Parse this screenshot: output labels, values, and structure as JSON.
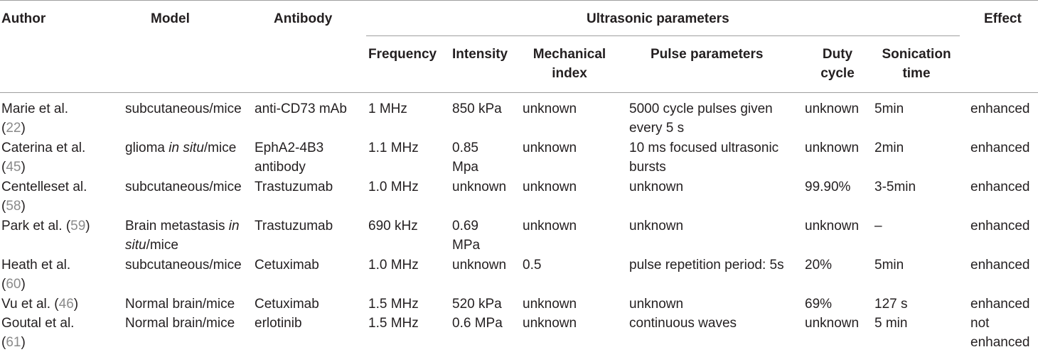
{
  "header": {
    "author": "Author",
    "model": "Model",
    "antibody": "Antibody",
    "ultrasonic": "Ultrasonic parameters",
    "effect": "Effect",
    "frequency": "Frequency",
    "intensity": "Intensity",
    "mechanical_1": "Mechanical",
    "mechanical_2": "index",
    "pulse": "Pulse parameters",
    "duty_1": "Duty",
    "duty_2": "cycle",
    "sonication_1": "Sonication",
    "sonication_2": "time"
  },
  "rows": [
    {
      "author_1": "Marie et al.",
      "author_2": "",
      "cite": "22",
      "model_1": "subcutaneous/mice",
      "model_2": "",
      "antibody_1": "anti-CD73 mAb",
      "antibody_2": "",
      "frequency": "1 MHz",
      "intensity_1": "850 kPa",
      "intensity_2": "",
      "mechanical": "unknown",
      "pulse_1": "5000 cycle pulses given",
      "pulse_2": "every 5 s",
      "duty": "unknown",
      "sonication": "5min",
      "effect_1": "enhanced",
      "effect_2": ""
    },
    {
      "author_1": "Caterina et al.",
      "author_2": "",
      "cite": "45",
      "model_1": "glioma ",
      "model_1_em": "in situ",
      "model_1_tail": "/mice",
      "model_2": "",
      "antibody_1": "EphA2-4B3",
      "antibody_2": "antibody",
      "frequency": "1.1 MHz",
      "intensity_1": "0.85",
      "intensity_2": "Mpa",
      "mechanical": "unknown",
      "pulse_1": "10 ms focused ultrasonic",
      "pulse_2": "bursts",
      "duty": "unknown",
      "sonication": "2min",
      "effect_1": "enhanced",
      "effect_2": ""
    },
    {
      "author_1": "Centelleset al.",
      "author_2": "",
      "cite": "58",
      "model_1": "subcutaneous/mice",
      "model_2": "",
      "antibody_1": "Trastuzumab",
      "antibody_2": "",
      "frequency": "1.0 MHz",
      "intensity_1": "unknown",
      "intensity_2": "",
      "mechanical": "unknown",
      "pulse_1": "unknown",
      "pulse_2": "",
      "duty": "99.90%",
      "sonication": "3-5min",
      "effect_1": "enhanced",
      "effect_2": ""
    },
    {
      "author_1": "Park et al. (",
      "author_2": "",
      "cite": "59",
      "model_1": "Brain metastasis ",
      "model_1_em": "in",
      "model_2_em": "situ",
      "model_2_tail": "/mice",
      "antibody_1": "Trastuzumab",
      "antibody_2": "",
      "frequency": "690 kHz",
      "intensity_1": "0.69",
      "intensity_2": "MPa",
      "mechanical": "unknown",
      "pulse_1": "unknown",
      "pulse_2": "",
      "duty": "unknown",
      "sonication": "–",
      "effect_1": "enhanced",
      "effect_2": ""
    },
    {
      "author_1": "Heath et al.",
      "author_2": "",
      "cite": "60",
      "model_1": "subcutaneous/mice",
      "model_2": "",
      "antibody_1": "Cetuximab",
      "antibody_2": "",
      "frequency": "1.0 MHz",
      "intensity_1": "unknown",
      "intensity_2": "",
      "mechanical": "0.5",
      "pulse_1": "pulse repetition period: 5s",
      "pulse_2": "",
      "duty": "20%",
      "sonication": "5min",
      "effect_1": "enhanced",
      "effect_2": ""
    },
    {
      "author_1": "Vu et al. (",
      "author_2": "",
      "cite": "46",
      "model_1": "Normal brain/mice",
      "model_2": "",
      "antibody_1": "Cetuximab",
      "antibody_2": "",
      "frequency": "1.5 MHz",
      "intensity_1": "520 kPa",
      "intensity_2": "",
      "mechanical": "unknown",
      "pulse_1": "unknown",
      "pulse_2": "",
      "duty": "69%",
      "sonication": "127 s",
      "effect_1": "enhanced",
      "effect_2": ""
    },
    {
      "author_1": "Goutal et al.",
      "author_2": "",
      "cite": "61",
      "model_1": "Normal brain/mice",
      "model_2": "",
      "antibody_1": "erlotinib",
      "antibody_2": "",
      "frequency": "1.5 MHz",
      "intensity_1": "0.6 MPa",
      "intensity_2": "",
      "mechanical": "unknown",
      "pulse_1": "continuous waves",
      "pulse_2": "",
      "duty": "unknown",
      "sonication": "5 min",
      "effect_1": "not",
      "effect_2": "enhanced"
    }
  ],
  "punct": {
    "open": "(",
    "close": ")"
  }
}
